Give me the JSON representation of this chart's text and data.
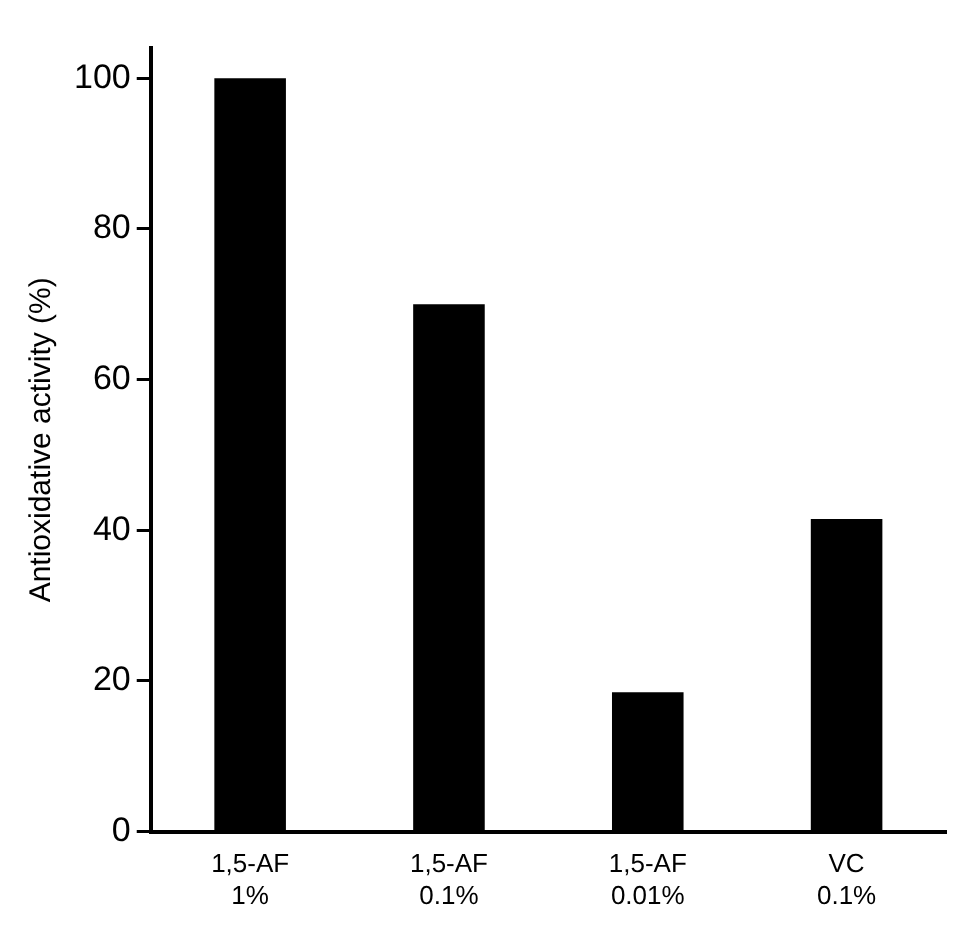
{
  "chart_data": {
    "type": "bar",
    "ylabel": "Antioxidative activity (%)",
    "categories": [
      "1,5-AF\n1%",
      "1,5-AF\n0.1%",
      "1,5-AF\n0.01%",
      "VC\n0.1%"
    ],
    "values": [
      100,
      70,
      18.5,
      41.5
    ],
    "color": "#000000",
    "ylim": [
      0,
      104
    ],
    "yticks": [
      0,
      20,
      40,
      60,
      80,
      100
    ],
    "grid": false,
    "legend": false
  }
}
